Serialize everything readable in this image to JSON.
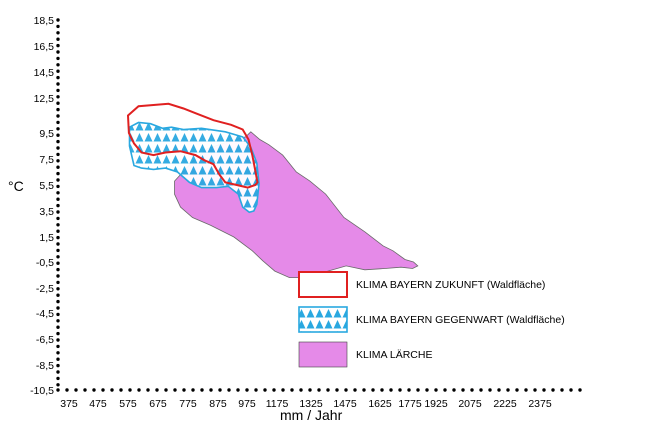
{
  "chart_data": {
    "type": "area",
    "xlabel": "mm / Jahr",
    "ylabel": "°C",
    "xlim": [
      375,
      2375
    ],
    "ylim": [
      -10.5,
      18.5
    ],
    "x_ticks": [
      "375",
      "475",
      "575",
      "675",
      "775",
      "875",
      "975",
      "1175",
      "1325",
      "1475",
      "1625",
      "1775",
      "1925",
      "2075",
      "2225",
      "2375"
    ],
    "y_ticks": [
      "18,5",
      "16,5",
      "14,5",
      "12,5",
      "9,5",
      "7,5",
      "5,5",
      "3,5",
      "1,5",
      "-0,5",
      "-2,5",
      "-4,5",
      "-6,5",
      "-8,5",
      "-10,5"
    ],
    "grid": false,
    "legend_position": "lower-right",
    "series": [
      {
        "name": "KLIMA BAYERN ZUKUNFT (Waldfläche)",
        "style": "outline",
        "color": "#e02020",
        "points": [
          [
            575,
            11.0
          ],
          [
            610,
            11.8
          ],
          [
            660,
            11.9
          ],
          [
            710,
            12.0
          ],
          [
            760,
            11.6
          ],
          [
            800,
            11.2
          ],
          [
            860,
            10.6
          ],
          [
            920,
            10.2
          ],
          [
            960,
            9.8
          ],
          [
            985,
            9.0
          ],
          [
            1010,
            7.8
          ],
          [
            1030,
            6.6
          ],
          [
            1045,
            5.7
          ],
          [
            1030,
            5.5
          ],
          [
            980,
            5.3
          ],
          [
            940,
            5.5
          ],
          [
            900,
            5.7
          ],
          [
            880,
            6.3
          ],
          [
            860,
            7.1
          ],
          [
            830,
            7.4
          ],
          [
            800,
            7.8
          ],
          [
            750,
            8.1
          ],
          [
            700,
            8.0
          ],
          [
            660,
            7.8
          ],
          [
            620,
            8.0
          ],
          [
            595,
            8.7
          ],
          [
            578,
            9.5
          ]
        ]
      },
      {
        "name": "KLIMA BAYERN GEGENWART (Waldfläche)",
        "style": "hatched",
        "color": "#29a8e0",
        "points": [
          [
            580,
            10.0
          ],
          [
            610,
            10.4
          ],
          [
            650,
            10.3
          ],
          [
            690,
            9.9
          ],
          [
            720,
            10.0
          ],
          [
            760,
            9.8
          ],
          [
            820,
            9.9
          ],
          [
            900,
            9.6
          ],
          [
            960,
            9.2
          ],
          [
            1000,
            8.4
          ],
          [
            1040,
            7.2
          ],
          [
            1055,
            5.6
          ],
          [
            1040,
            4.0
          ],
          [
            1020,
            3.5
          ],
          [
            990,
            3.4
          ],
          [
            960,
            3.8
          ],
          [
            945,
            4.8
          ],
          [
            910,
            5.4
          ],
          [
            870,
            5.3
          ],
          [
            820,
            5.3
          ],
          [
            780,
            5.7
          ],
          [
            740,
            6.5
          ],
          [
            700,
            6.8
          ],
          [
            660,
            6.7
          ],
          [
            620,
            6.8
          ],
          [
            595,
            7.0
          ],
          [
            580,
            8.5
          ]
        ]
      },
      {
        "name": "KLIMA LÄRCHE",
        "style": "filled",
        "color": "#e58ae8",
        "points": [
          [
            1000,
            9.6
          ],
          [
            1060,
            9.0
          ],
          [
            1120,
            8.6
          ],
          [
            1200,
            7.8
          ],
          [
            1260,
            6.5
          ],
          [
            1320,
            5.8
          ],
          [
            1390,
            4.8
          ],
          [
            1470,
            3.0
          ],
          [
            1560,
            1.9
          ],
          [
            1640,
            0.8
          ],
          [
            1690,
            0.4
          ],
          [
            1750,
            -0.3
          ],
          [
            1795,
            -0.5
          ],
          [
            1820,
            -0.8
          ],
          [
            1790,
            -1.0
          ],
          [
            1730,
            -0.9
          ],
          [
            1650,
            -1.0
          ],
          [
            1560,
            -1.1
          ],
          [
            1480,
            -0.8
          ],
          [
            1380,
            -1.3
          ],
          [
            1300,
            -1.7
          ],
          [
            1230,
            -1.7
          ],
          [
            1160,
            -1.2
          ],
          [
            1080,
            -0.4
          ],
          [
            1010,
            0.4
          ],
          [
            930,
            1.5
          ],
          [
            850,
            2.4
          ],
          [
            790,
            3.0
          ],
          [
            750,
            3.8
          ],
          [
            730,
            4.8
          ],
          [
            730,
            5.8
          ],
          [
            790,
            7.3
          ],
          [
            840,
            8.3
          ],
          [
            920,
            8.9
          ],
          [
            970,
            9.2
          ]
        ]
      }
    ]
  }
}
